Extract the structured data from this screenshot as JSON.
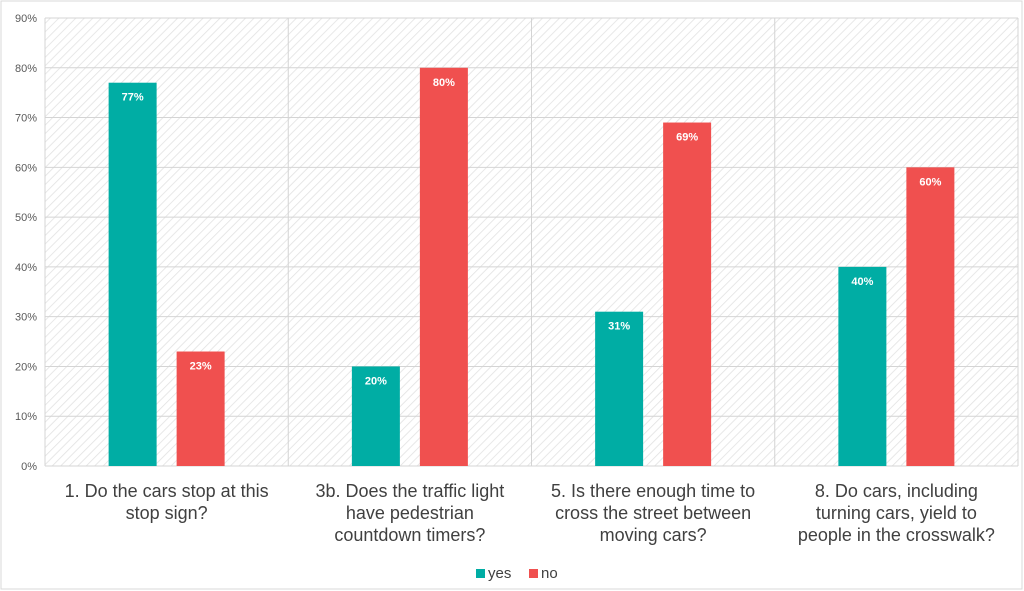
{
  "chart_data": {
    "type": "bar",
    "categories": [
      [
        "1. Do the cars stop at this",
        "stop sign?"
      ],
      [
        "3b. Does the traffic light",
        "have pedestrian",
        "countdown timers?"
      ],
      [
        "5. Is there enough time to",
        "cross the street between",
        "moving cars?"
      ],
      [
        "8. Do cars, including",
        "turning cars, yield to",
        "people in the crosswalk?"
      ]
    ],
    "series": [
      {
        "name": "yes",
        "values": [
          77,
          20,
          31,
          40
        ],
        "labels": [
          "77%",
          "20%",
          "31%",
          "40%"
        ],
        "color": "#00ada4"
      },
      {
        "name": "no",
        "values": [
          23,
          80,
          69,
          60
        ],
        "labels": [
          "23%",
          "80%",
          "69%",
          "60%"
        ],
        "color": "#f0504f"
      }
    ],
    "ylim": [
      0,
      90
    ],
    "yticks": [
      0,
      10,
      20,
      30,
      40,
      50,
      60,
      70,
      80,
      90
    ],
    "ytick_labels": [
      "0%",
      "10%",
      "20%",
      "30%",
      "40%",
      "50%",
      "60%",
      "70%",
      "80%",
      "90%"
    ],
    "grid": true,
    "legend_position": "bottom"
  }
}
